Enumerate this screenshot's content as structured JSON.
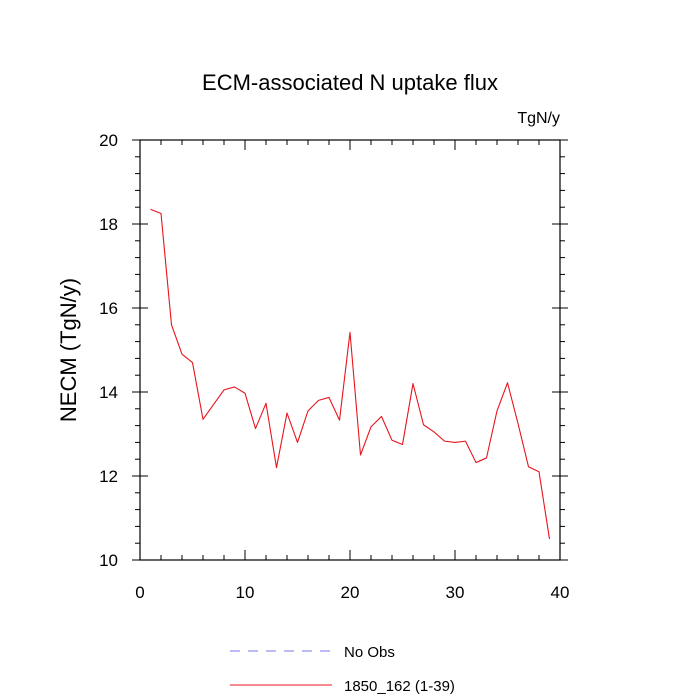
{
  "chart_data": {
    "type": "line",
    "title": "ECM-associated N uptake flux",
    "units_label": "TgN/y",
    "xlabel": "",
    "ylabel": "NECM  (TgN/y)",
    "xlim": [
      0,
      40
    ],
    "ylim": [
      10,
      20
    ],
    "x_ticks": [
      0,
      10,
      20,
      30,
      40
    ],
    "y_ticks": [
      10,
      12,
      14,
      16,
      18,
      20
    ],
    "grid": false,
    "legend_position": "bottom",
    "series": [
      {
        "name": "No Obs",
        "color": "#7777ee",
        "style": "dashed",
        "x": [],
        "values": []
      },
      {
        "name": "1850_162 (1-39)",
        "color": "#e8141c",
        "style": "solid",
        "x": [
          1,
          2,
          3,
          4,
          5,
          6,
          7,
          8,
          9,
          10,
          11,
          12,
          13,
          14,
          15,
          16,
          17,
          18,
          19,
          20,
          21,
          22,
          23,
          24,
          25,
          26,
          27,
          28,
          29,
          30,
          31,
          32,
          33,
          34,
          35,
          36,
          37,
          38,
          39
        ],
        "values": [
          18.35,
          18.25,
          15.6,
          14.9,
          14.7,
          13.35,
          13.7,
          14.05,
          14.12,
          13.97,
          13.13,
          13.73,
          12.2,
          13.5,
          12.8,
          13.55,
          13.8,
          13.87,
          13.33,
          15.42,
          12.5,
          13.17,
          13.42,
          12.85,
          12.75,
          14.2,
          13.22,
          13.05,
          12.83,
          12.8,
          12.83,
          12.32,
          12.43,
          13.55,
          14.22,
          13.25,
          12.22,
          12.1,
          10.5
        ]
      }
    ]
  }
}
